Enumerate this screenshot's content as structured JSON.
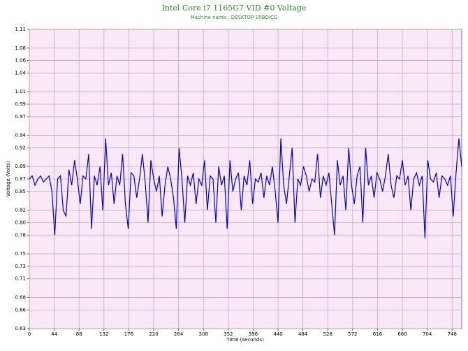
{
  "chart_data": {
    "type": "line",
    "title": "Intel Core i7 1165G7 VID #0 Voltage",
    "subtitle": "Machine name : DESKTOP-1RBOICG",
    "x_label": "Time (seconds)",
    "y_label": "Voltage (Volts)",
    "xlim": [
      0,
      765
    ],
    "ylim": [
      0.63,
      1.11
    ],
    "xticks": [
      0,
      44,
      88,
      132,
      176,
      220,
      264,
      308,
      352,
      396,
      440,
      484,
      528,
      572,
      616,
      660,
      704,
      748
    ],
    "yticks": [
      0.63,
      0.66,
      0.68,
      0.71,
      0.73,
      0.75,
      0.78,
      {
        "value": 0.8,
        "label": "0.80"
      },
      0.82,
      0.85,
      0.87,
      0.89,
      0.92,
      0.94,
      0.97,
      0.99,
      1.01,
      1.04,
      1.06,
      1.08,
      1.11
    ],
    "grid": true,
    "x": [
      0,
      5,
      10,
      15,
      20,
      25,
      30,
      35,
      40,
      45,
      50,
      55,
      60,
      65,
      70,
      75,
      80,
      85,
      90,
      95,
      100,
      105,
      110,
      115,
      120,
      125,
      130,
      135,
      140,
      145,
      150,
      155,
      160,
      165,
      170,
      175,
      180,
      185,
      190,
      195,
      200,
      205,
      210,
      215,
      220,
      225,
      230,
      235,
      240,
      245,
      250,
      255,
      260,
      265,
      270,
      275,
      280,
      285,
      290,
      295,
      300,
      305,
      310,
      315,
      320,
      325,
      330,
      335,
      340,
      345,
      350,
      355,
      360,
      365,
      370,
      375,
      380,
      385,
      390,
      395,
      400,
      405,
      410,
      415,
      420,
      425,
      430,
      435,
      440,
      445,
      450,
      455,
      460,
      465,
      470,
      475,
      480,
      485,
      490,
      495,
      500,
      505,
      510,
      515,
      520,
      525,
      530,
      535,
      540,
      545,
      550,
      555,
      560,
      565,
      570,
      575,
      580,
      585,
      590,
      595,
      600,
      605,
      610,
      615,
      620,
      625,
      630,
      635,
      640,
      645,
      650,
      655,
      660,
      665,
      670,
      675,
      680,
      685,
      690,
      695,
      700,
      705,
      710,
      715,
      720,
      725,
      730,
      735,
      740,
      745,
      750,
      755,
      760,
      765
    ],
    "series": [
      {
        "name": "VID #0 Voltage",
        "color": "#0000c8",
        "values": [
          0.87,
          0.875,
          0.86,
          0.87,
          0.875,
          0.865,
          0.87,
          0.875,
          0.85,
          0.78,
          0.87,
          0.875,
          0.82,
          0.81,
          0.885,
          0.86,
          0.9,
          0.87,
          0.83,
          0.875,
          0.87,
          0.91,
          0.79,
          0.875,
          0.86,
          0.89,
          0.82,
          0.935,
          0.86,
          0.88,
          0.83,
          0.875,
          0.86,
          0.91,
          0.83,
          0.79,
          0.88,
          0.875,
          0.84,
          0.87,
          0.91,
          0.865,
          0.8,
          0.9,
          0.87,
          0.85,
          0.875,
          0.81,
          0.86,
          0.89,
          0.87,
          0.84,
          0.79,
          0.92,
          0.87,
          0.8,
          0.875,
          0.86,
          0.88,
          0.83,
          0.87,
          0.86,
          0.9,
          0.82,
          0.875,
          0.87,
          0.8,
          0.89,
          0.86,
          0.875,
          0.79,
          0.9,
          0.85,
          0.87,
          0.88,
          0.82,
          0.875,
          0.86,
          0.9,
          0.83,
          0.87,
          0.865,
          0.88,
          0.84,
          0.875,
          0.86,
          0.89,
          0.85,
          0.8,
          0.935,
          0.86,
          0.83,
          0.875,
          0.92,
          0.8,
          0.87,
          0.86,
          0.89,
          0.875,
          0.85,
          0.87,
          0.865,
          0.91,
          0.84,
          0.875,
          0.86,
          0.88,
          0.83,
          0.78,
          0.9,
          0.86,
          0.875,
          0.82,
          0.92,
          0.86,
          0.83,
          0.875,
          0.89,
          0.8,
          0.92,
          0.86,
          0.875,
          0.84,
          0.88,
          0.87,
          0.85,
          0.875,
          0.91,
          0.86,
          0.84,
          0.875,
          0.87,
          0.9,
          0.86,
          0.875,
          0.82,
          0.87,
          0.88,
          0.86,
          0.875,
          0.775,
          0.9,
          0.87,
          0.865,
          0.88,
          0.84,
          0.875,
          0.87,
          0.86,
          0.875,
          0.81,
          0.88,
          0.935,
          0.89
        ]
      }
    ]
  }
}
